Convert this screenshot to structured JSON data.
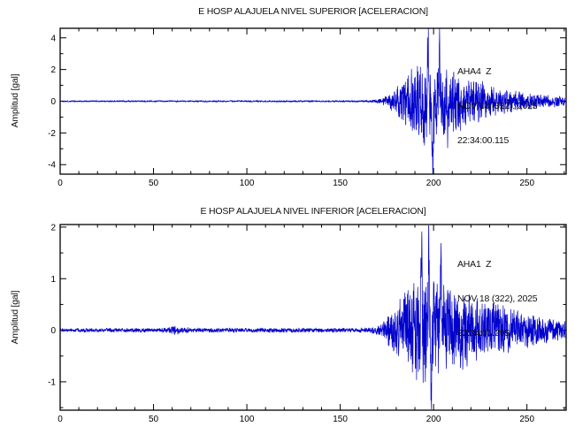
{
  "page": {
    "background": "#ffffff",
    "frame_color": "#000000"
  },
  "chart_data": [
    {
      "type": "line",
      "title": "E HOSP ALAJUELA NIVEL SUPERIOR [ACELERACION]",
      "ylabel": "Amplitud [gal]",
      "xlabel": "",
      "xlim": [
        0,
        271
      ],
      "ylim": [
        -4.6,
        4.6
      ],
      "xticks": [
        0,
        50,
        100,
        150,
        200,
        250
      ],
      "xtick_minor_step": 10,
      "yticks": [
        -4,
        -2,
        0,
        2,
        4
      ],
      "ytick_minor_step": 1,
      "grid": false,
      "line_color": "#0000cd",
      "legend": null,
      "annotation": {
        "station": "AHA4  Z",
        "date": "NOV 18 (322), 2025",
        "time": "22:34:00.115"
      },
      "waveform": {
        "seed": 1337,
        "sample_step": 0.08,
        "xmax": 270.5,
        "envelope": [
          [
            0,
            0.055
          ],
          [
            160,
            0.06
          ],
          [
            168,
            0.1
          ],
          [
            175,
            0.35
          ],
          [
            182,
            1.2
          ],
          [
            188,
            2.2
          ],
          [
            194,
            2.9
          ],
          [
            198,
            3.2
          ],
          [
            203,
            2.6
          ],
          [
            210,
            2.2
          ],
          [
            218,
            1.8
          ],
          [
            228,
            1.2
          ],
          [
            240,
            0.8
          ],
          [
            255,
            0.5
          ],
          [
            270,
            0.35
          ]
        ],
        "spikes": [
          {
            "x": 197.0,
            "amp": 4.3
          },
          {
            "x": 199.6,
            "amp": -4.5
          },
          {
            "x": 203.2,
            "amp": 3.4
          },
          {
            "x": 207.5,
            "amp": -2.8
          }
        ]
      }
    },
    {
      "type": "line",
      "title": "E HOSP ALAJUELA NIVEL INFERIOR [ACELERACION]",
      "ylabel": "Amplitud [gal]",
      "xlabel": "",
      "xlim": [
        0,
        271
      ],
      "ylim": [
        -1.55,
        2.05
      ],
      "xticks": [
        0,
        50,
        100,
        150,
        200,
        250
      ],
      "xtick_minor_step": 10,
      "yticks": [
        -1,
        0,
        1,
        2
      ],
      "ytick_minor_step": 0.5,
      "grid": false,
      "line_color": "#0000cd",
      "legend": null,
      "annotation": {
        "station": "AHA1  Z",
        "date": "NOV 18 (322), 2025",
        "time": "22:34:01.295"
      },
      "waveform": {
        "seed": 9021,
        "sample_step": 0.08,
        "xmax": 270.5,
        "envelope": [
          [
            0,
            0.04
          ],
          [
            55,
            0.045
          ],
          [
            62,
            0.09
          ],
          [
            70,
            0.045
          ],
          [
            165,
            0.05
          ],
          [
            172,
            0.12
          ],
          [
            178,
            0.4
          ],
          [
            184,
            0.8
          ],
          [
            190,
            1.1
          ],
          [
            196,
            1.3
          ],
          [
            200,
            1.1
          ],
          [
            206,
            0.95
          ],
          [
            214,
            0.85
          ],
          [
            222,
            0.75
          ],
          [
            232,
            0.6
          ],
          [
            245,
            0.45
          ],
          [
            258,
            0.3
          ],
          [
            270,
            0.22
          ]
        ],
        "spikes": [
          {
            "x": 197.5,
            "amp": 2.0
          },
          {
            "x": 198.7,
            "amp": -1.45
          },
          {
            "x": 193.5,
            "amp": 1.5
          },
          {
            "x": 204.0,
            "amp": 1.15
          }
        ]
      }
    }
  ]
}
